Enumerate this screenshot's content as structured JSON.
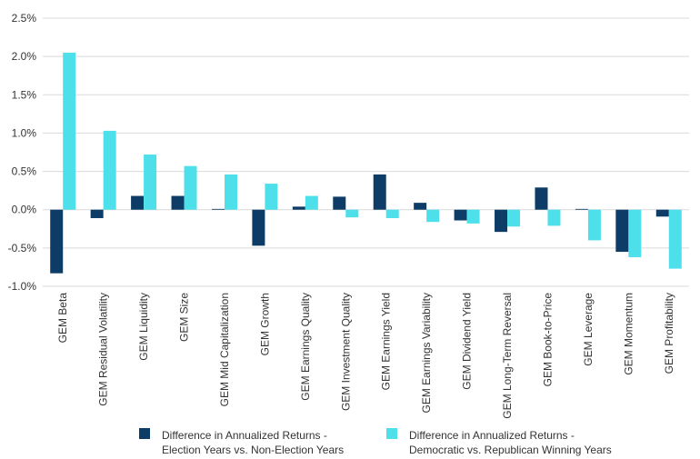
{
  "chart_data": {
    "type": "bar",
    "categories": [
      "GEM Beta",
      "GEM Residual Volatility",
      "GEM Liquidity",
      "GEM Size",
      "GEM Mid Capitalization",
      "GEM Growth",
      "GEM Earnings Quality",
      "GEM Investment Quality",
      "GEM Earnings Yield",
      "GEM Earnings Variability",
      "GEM Dividend Yield",
      "GEM Long-Term Reversal",
      "GEM Book-to-Price",
      "GEM Leverage",
      "GEM Momentum",
      "GEM Profitability"
    ],
    "series": [
      {
        "name_lines": [
          "Difference in Annualized Returns -",
          "Election Years vs. Non-Election Years"
        ],
        "color": "#0d3d66",
        "values": [
          -0.83,
          -0.11,
          0.18,
          0.18,
          0.01,
          -0.47,
          0.04,
          0.17,
          0.46,
          0.09,
          -0.14,
          -0.29,
          0.29,
          0.01,
          -0.55,
          -0.09
        ]
      },
      {
        "name_lines": [
          "Difference in Annualized Returns -",
          "Democratic vs. Republican Winning Years"
        ],
        "color": "#4ee0ea",
        "values": [
          2.05,
          1.03,
          0.72,
          0.57,
          0.46,
          0.34,
          0.18,
          -0.1,
          -0.11,
          -0.16,
          -0.18,
          -0.22,
          -0.21,
          -0.4,
          -0.62,
          -0.77
        ]
      }
    ],
    "y_ticks": [
      "2.5%",
      "2.0%",
      "1.5%",
      "1.0%",
      "0.5%",
      "0.0%",
      "-0.5%",
      "-1.0%"
    ],
    "ylim": [
      -1.0,
      2.5
    ],
    "grid": true,
    "legend_position": "bottom"
  }
}
